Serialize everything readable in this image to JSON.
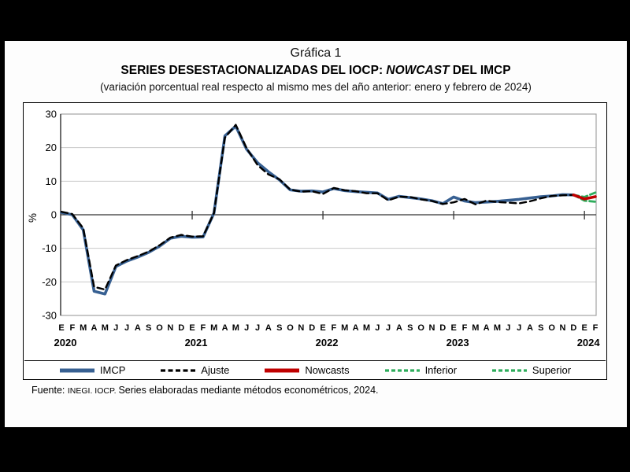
{
  "header": {
    "caption": "Gráfica 1",
    "title_plain": "SERIES DESESTACIONALIZADAS DEL IOCP: ",
    "title_italic": "NOWCAST",
    "title_tail": " DEL IMCP",
    "subtitle": "(variación porcentual real respecto al mismo mes del año anterior: enero y febrero de 2024)"
  },
  "footer": {
    "prefix": "Fuente: ",
    "smallcaps": "INEGI. IOCP. ",
    "text": "Series elaboradas mediante métodos econométricos, 2024."
  },
  "colors": {
    "imcp": "#376092",
    "ajuste": "#000000",
    "nowcasts": "#C00000",
    "bounds_green": "#2EAD5C",
    "grid": "#C9C9C9",
    "axis": "#333333",
    "plot_border": "#9A9A9A"
  },
  "legend": [
    {
      "label": "IMCP",
      "color": "#376092",
      "dash": "",
      "swatch_width": 5
    },
    {
      "label": "Ajuste",
      "color": "#000000",
      "dash": "6 3.5",
      "swatch_width": 3.2
    },
    {
      "label": "Nowcasts",
      "color": "#C00000",
      "dash": "",
      "swatch_width": 5
    },
    {
      "label": "Inferior",
      "color": "#2EAD5C",
      "dash": "5 3",
      "swatch_width": 3.2
    },
    {
      "label": "Superior",
      "color": "#2EAD5C",
      "dash": "5 3",
      "swatch_width": 3.2
    }
  ],
  "chart_data": {
    "type": "line",
    "title": "Series desestacionalizadas del IOCP: Nowcast del IMCP",
    "ylabel": "%",
    "ylim": [
      -30,
      30
    ],
    "yticks": [
      30,
      20,
      10,
      0,
      -10,
      -20,
      -30
    ],
    "grid": "horizontal",
    "legend_position": "bottom",
    "month_labels": [
      "E",
      "F",
      "M",
      "A",
      "M",
      "J",
      "J",
      "A",
      "S",
      "O",
      "N",
      "D",
      "E",
      "F",
      "M",
      "A",
      "M",
      "J",
      "J",
      "A",
      "S",
      "O",
      "N",
      "D",
      "E",
      "F",
      "M",
      "A",
      "M",
      "J",
      "J",
      "A",
      "S",
      "O",
      "N",
      "D",
      "E",
      "F",
      "M",
      "A",
      "M",
      "J",
      "J",
      "A",
      "S",
      "O",
      "N",
      "D",
      "E",
      "F"
    ],
    "year_labels": [
      {
        "label": "2020",
        "index": 0
      },
      {
        "label": "2021",
        "index": 12
      },
      {
        "label": "2022",
        "index": 24
      },
      {
        "label": "2023",
        "index": 36
      },
      {
        "label": "2024",
        "index": 48
      }
    ],
    "year_tick_indices": [
      12,
      24,
      36,
      48
    ],
    "series": [
      {
        "name": "IMCP",
        "color": "#376092",
        "width": 3.6,
        "dash": "",
        "values": [
          0.7,
          0.0,
          -4.5,
          -22.8,
          -23.6,
          -15.4,
          -13.8,
          -12.6,
          -11.2,
          -9.4,
          -7.0,
          -6.4,
          -6.7,
          -6.6,
          0.5,
          23.5,
          26.4,
          19.5,
          15.5,
          12.8,
          10.4,
          7.4,
          7.0,
          7.1,
          6.8,
          7.8,
          7.2,
          6.9,
          6.7,
          6.5,
          4.6,
          5.5,
          5.1,
          4.7,
          4.2,
          3.3,
          5.3,
          4.1,
          3.6,
          3.8,
          4.0,
          4.3,
          4.6,
          5.0,
          5.4,
          5.6,
          6.0,
          5.9,
          null,
          null
        ]
      },
      {
        "name": "Ajuste",
        "color": "#000000",
        "width": 2.4,
        "dash": "8 5",
        "values": [
          0.9,
          0.2,
          -4.0,
          -21.5,
          -22.3,
          -15.1,
          -13.5,
          -12.3,
          -11.0,
          -9.1,
          -6.8,
          -6.0,
          -6.5,
          -6.4,
          0.5,
          23.0,
          26.8,
          19.8,
          14.8,
          12.0,
          10.6,
          7.5,
          6.9,
          7.0,
          6.2,
          8.0,
          7.3,
          7.0,
          6.4,
          6.4,
          4.3,
          5.4,
          5.3,
          4.6,
          4.1,
          3.2,
          3.7,
          4.7,
          3.1,
          4.2,
          3.8,
          3.6,
          3.4,
          4.0,
          4.9,
          5.6,
          5.8,
          5.9,
          null,
          null
        ]
      },
      {
        "name": "Inferior",
        "color": "#2EAD5C",
        "width": 2.8,
        "dash": "7 4",
        "values": [
          null,
          null,
          null,
          null,
          null,
          null,
          null,
          null,
          null,
          null,
          null,
          null,
          null,
          null,
          null,
          null,
          null,
          null,
          null,
          null,
          null,
          null,
          null,
          null,
          null,
          null,
          null,
          null,
          null,
          null,
          null,
          null,
          null,
          null,
          null,
          null,
          null,
          null,
          null,
          null,
          null,
          null,
          null,
          null,
          null,
          null,
          null,
          5.9,
          4.2,
          3.9
        ]
      },
      {
        "name": "Superior",
        "color": "#2EAD5C",
        "width": 2.8,
        "dash": "7 4",
        "values": [
          null,
          null,
          null,
          null,
          null,
          null,
          null,
          null,
          null,
          null,
          null,
          null,
          null,
          null,
          null,
          null,
          null,
          null,
          null,
          null,
          null,
          null,
          null,
          null,
          null,
          null,
          null,
          null,
          null,
          null,
          null,
          null,
          null,
          null,
          null,
          null,
          null,
          null,
          null,
          null,
          null,
          null,
          null,
          null,
          null,
          null,
          null,
          5.9,
          5.3,
          6.6
        ]
      },
      {
        "name": "Nowcasts",
        "color": "#C00000",
        "width": 3.6,
        "dash": "",
        "values": [
          null,
          null,
          null,
          null,
          null,
          null,
          null,
          null,
          null,
          null,
          null,
          null,
          null,
          null,
          null,
          null,
          null,
          null,
          null,
          null,
          null,
          null,
          null,
          null,
          null,
          null,
          null,
          null,
          null,
          null,
          null,
          null,
          null,
          null,
          null,
          null,
          null,
          null,
          null,
          null,
          null,
          null,
          null,
          null,
          null,
          null,
          null,
          5.9,
          4.7,
          5.4
        ]
      }
    ]
  }
}
